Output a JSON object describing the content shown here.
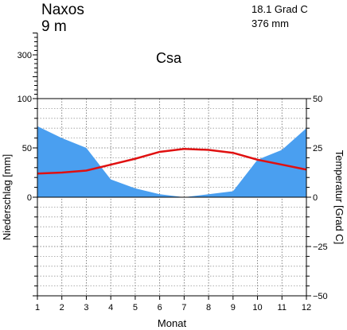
{
  "header": {
    "station": "Naxos",
    "elevation": "9 m",
    "mean_temperature": "18.1 Grad C",
    "annual_precipitation": "376 mm",
    "climate_class": "Csa"
  },
  "chart_data": {
    "type": "area",
    "title": "",
    "xlabel": "Monat",
    "ylabel_left": "Niederschlag [mm]",
    "ylabel_right": "Temperatur [Grad C]",
    "x": [
      1,
      2,
      3,
      4,
      5,
      6,
      7,
      8,
      9,
      10,
      11,
      12
    ],
    "x_tick_labels": [
      "1",
      "2",
      "3",
      "4",
      "5",
      "6",
      "7",
      "8",
      "9",
      "10",
      "11",
      "12"
    ],
    "left_axis": {
      "ylim": [
        -100,
        300
      ],
      "ticks": [
        0,
        50,
        100
      ],
      "tick_labels": [
        "0",
        "50",
        "100"
      ],
      "upper_ticks": [
        300
      ],
      "upper_tick_labels": [
        "300"
      ]
    },
    "right_axis": {
      "ylim": [
        -50,
        50
      ],
      "ticks": [
        -50,
        -25,
        0,
        25,
        50
      ],
      "tick_labels": [
        "−50",
        "−25",
        "0",
        "25",
        "50"
      ]
    },
    "grid": true,
    "series": [
      {
        "kind": "area",
        "axis": "left",
        "color": "#4a9ff0",
        "values": [
          72,
          60,
          50,
          18,
          9,
          3,
          0,
          3,
          6,
          38,
          48,
          70
        ]
      },
      {
        "kind": "line",
        "axis": "right",
        "color": "#e01010",
        "values": [
          12,
          12.5,
          13.5,
          16.5,
          19.5,
          23,
          24.5,
          24,
          22.5,
          19,
          16.5,
          14
        ]
      }
    ]
  }
}
